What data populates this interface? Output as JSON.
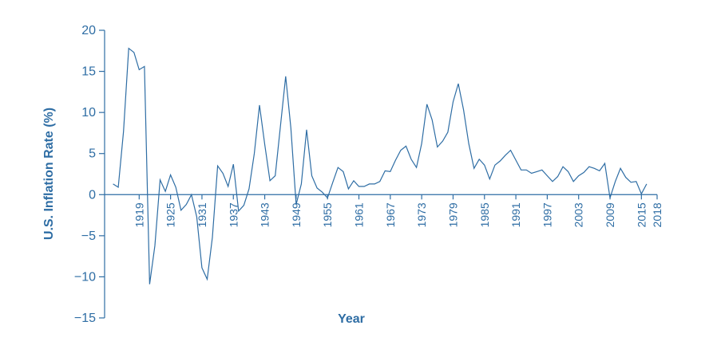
{
  "chart_data": {
    "type": "line",
    "title": "",
    "xlabel": "Year",
    "ylabel": "U.S. Inflation Rate (%)",
    "xlim": [
      1913,
      2018
    ],
    "ylim": [
      -15,
      20
    ],
    "yticks": [
      20,
      15,
      10,
      5,
      0,
      -5,
      -10,
      -15
    ],
    "ytick_labels": [
      "20",
      "15",
      "10",
      "5",
      "0",
      "−5",
      "−10",
      "−15"
    ],
    "xticks": [
      "1919",
      "1925",
      "1931",
      "1937",
      "1943",
      "1949",
      "1955",
      "1961",
      "1967",
      "1973",
      "1979",
      "1985",
      "1991",
      "1997",
      "2003",
      "2009",
      "2015",
      "2018"
    ],
    "grid": false,
    "series": [
      {
        "color": "#2e6da4",
        "x": [
          1914,
          1915,
          1916,
          1917,
          1918,
          1919,
          1920,
          1921,
          1922,
          1923,
          1924,
          1925,
          1926,
          1927,
          1928,
          1929,
          1930,
          1931,
          1932,
          1933,
          1934,
          1935,
          1936,
          1937,
          1938,
          1939,
          1940,
          1941,
          1942,
          1943,
          1944,
          1945,
          1946,
          1947,
          1948,
          1949,
          1950,
          1951,
          1952,
          1953,
          1954,
          1955,
          1956,
          1957,
          1958,
          1959,
          1960,
          1961,
          1962,
          1963,
          1964,
          1965,
          1966,
          1967,
          1968,
          1969,
          1970,
          1971,
          1972,
          1973,
          1974,
          1975,
          1976,
          1977,
          1978,
          1979,
          1980,
          1981,
          1982,
          1983,
          1984,
          1985,
          1986,
          1987,
          1988,
          1989,
          1990,
          1991,
          1992,
          1993,
          1994,
          1995,
          1996,
          1997,
          1998,
          1999,
          2000,
          2001,
          2002,
          2003,
          2004,
          2005,
          2006,
          2007,
          2008,
          2009,
          2010,
          2011,
          2012,
          2013,
          2014,
          2015,
          2016
        ],
        "values": [
          1.3,
          0.9,
          7.7,
          17.8,
          17.3,
          15.2,
          15.6,
          -10.9,
          -6.2,
          1.8,
          0.4,
          2.4,
          0.9,
          -1.9,
          -1.2,
          0.0,
          -2.7,
          -8.9,
          -10.3,
          -5.2,
          3.5,
          2.6,
          1.0,
          3.7,
          -2.0,
          -1.3,
          0.7,
          5.0,
          10.9,
          6.1,
          1.7,
          2.3,
          8.3,
          14.4,
          8.1,
          -1.2,
          1.3,
          7.9,
          2.3,
          0.8,
          0.3,
          -0.4,
          1.5,
          3.3,
          2.8,
          0.7,
          1.7,
          1.0,
          1.0,
          1.3,
          1.3,
          1.6,
          2.9,
          2.8,
          4.2,
          5.4,
          5.9,
          4.3,
          3.3,
          6.2,
          11.0,
          9.1,
          5.8,
          6.5,
          7.6,
          11.3,
          13.5,
          10.3,
          6.2,
          3.2,
          4.3,
          3.6,
          1.9,
          3.6,
          4.1,
          4.8,
          5.4,
          4.2,
          3.0,
          3.0,
          2.6,
          2.8,
          3.0,
          2.3,
          1.6,
          2.2,
          3.4,
          2.8,
          1.6,
          2.3,
          2.7,
          3.4,
          3.2,
          2.9,
          3.8,
          -0.4,
          1.6,
          3.2,
          2.1,
          1.5,
          1.6,
          0.1,
          1.3
        ]
      }
    ]
  }
}
